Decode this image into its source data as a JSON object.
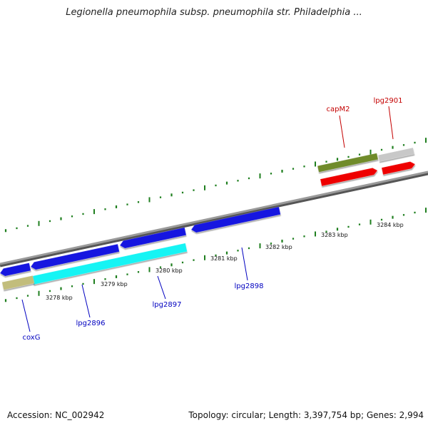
{
  "title": "Legionella pneumophila subsp. pneumophila str. Philadelphia ...",
  "footer": {
    "accession": "Accession: NC_002942",
    "topology": "Topology: circular; Length: 3,397,754 bp; Genes: 2,994"
  },
  "colors": {
    "axis": "#8a8a8a",
    "ticks": "#1f7f1f",
    "label_forward": "#c40000",
    "label_reverse": "#0000c0",
    "gene_blue": "#1515e0",
    "gene_cyan": "#12f4f4",
    "gene_olive": "#6f8b2a",
    "gene_gray": "#c8c8c8",
    "gene_red": "#ee0000",
    "gene_khaki": "#c2bd7c"
  },
  "axis": {
    "kbp_labels": [
      "3278 kbp",
      "3279 kbp",
      "3280 kbp",
      "3281 kbp",
      "3282 kbp",
      "3283 kbp",
      "3284 kbp"
    ]
  },
  "genes": [
    {
      "label": "capM2",
      "color": "gene_olive",
      "strand": "forward"
    },
    {
      "label": "lpg2901",
      "color": "gene_gray",
      "strand": "forward"
    },
    {
      "label": "",
      "color": "gene_red",
      "strand": "forward"
    },
    {
      "label": "",
      "color": "gene_red",
      "strand": "forward"
    },
    {
      "label": "",
      "color": "gene_blue",
      "strand": "reverse"
    },
    {
      "label": "",
      "color": "gene_blue",
      "strand": "reverse"
    },
    {
      "label": "",
      "color": "gene_blue",
      "strand": "reverse"
    },
    {
      "label": "lpg2898",
      "color": "gene_blue",
      "strand": "reverse"
    },
    {
      "label": "lpg2897",
      "color": "gene_cyan",
      "strand": "reverse"
    },
    {
      "label": "lpg2896",
      "color": "gene_cyan",
      "strand": "reverse"
    },
    {
      "label": "coxG",
      "color": "gene_khaki",
      "strand": "reverse"
    }
  ]
}
